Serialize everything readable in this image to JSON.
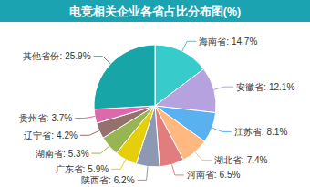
{
  "chart_data": {
    "type": "pie",
    "title": "电竞相关企业各省占比分布图(%)",
    "categories": [
      "海南省:",
      "安徽省:",
      "江苏省:",
      "湖北省:",
      "河南省:",
      "陕西省:",
      "广东省:",
      "湖南省:",
      "辽宁省:",
      "贵州省:",
      "其他省份:"
    ],
    "values": [
      14.7,
      12.1,
      8.1,
      7.4,
      6.5,
      6.2,
      5.9,
      5.3,
      4.2,
      3.7,
      25.9
    ],
    "value_labels": [
      "14.7%",
      "12.1%",
      "8.1%",
      "7.4%",
      "6.5%",
      "6.2%",
      "5.9%",
      "5.3%",
      "4.2%",
      "3.7%",
      "25.9%"
    ],
    "colors": [
      "#37cbcb",
      "#b6a2de",
      "#5ab1ef",
      "#ffb980",
      "#e17d7f",
      "#8d98b3",
      "#e5cf0d",
      "#97b552",
      "#95706d",
      "#dc69aa",
      "#18a5a7"
    ],
    "data_labels": true
  }
}
